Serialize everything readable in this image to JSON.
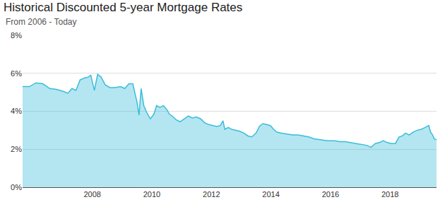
{
  "chart_data": {
    "type": "area",
    "title": "Historical Discounted 5-year Mortgage Rates",
    "subtitle": "From 2006 - Today",
    "color": "#3bbcd9",
    "grid": true,
    "x": [
      2005.66,
      2005.89,
      2006.11,
      2006.34,
      2006.57,
      2006.8,
      2007.02,
      2007.18,
      2007.32,
      2007.45,
      2007.59,
      2007.73,
      2007.86,
      2007.95,
      2008.07,
      2008.18,
      2008.3,
      2008.43,
      2008.59,
      2008.77,
      2008.95,
      2009.09,
      2009.23,
      2009.36,
      2009.5,
      2009.57,
      2009.64,
      2009.73,
      2009.84,
      2009.95,
      2010.07,
      2010.16,
      2010.27,
      2010.39,
      2010.5,
      2010.59,
      2010.68,
      2010.82,
      2010.95,
      2011.09,
      2011.23,
      2011.36,
      2011.5,
      2011.64,
      2011.77,
      2011.91,
      2012.05,
      2012.18,
      2012.3,
      2012.39,
      2012.45,
      2012.57,
      2012.68,
      2012.82,
      2012.95,
      2013.09,
      2013.23,
      2013.36,
      2013.5,
      2013.61,
      2013.73,
      2013.86,
      2013.98,
      2014.09,
      2014.2,
      2014.36,
      2014.55,
      2014.73,
      2014.91,
      2015.09,
      2015.27,
      2015.45,
      2015.68,
      2015.91,
      2016.14,
      2016.32,
      2016.5,
      2016.68,
      2016.86,
      2017.05,
      2017.23,
      2017.36,
      2017.5,
      2017.64,
      2017.77,
      2017.91,
      2018.05,
      2018.18,
      2018.3,
      2018.41,
      2018.52,
      2018.64,
      2018.77,
      2018.91,
      2019.05,
      2019.18,
      2019.3,
      2019.36,
      2019.43,
      2019.48,
      2019.56
    ],
    "values": [
      5.3,
      5.3,
      5.5,
      5.45,
      5.2,
      5.15,
      5.05,
      4.95,
      5.2,
      5.1,
      5.65,
      5.75,
      5.8,
      5.9,
      5.1,
      5.95,
      5.8,
      5.4,
      5.25,
      5.25,
      5.3,
      5.2,
      5.45,
      5.45,
      4.5,
      3.8,
      5.2,
      4.3,
      3.9,
      3.6,
      3.85,
      4.3,
      4.2,
      4.3,
      4.1,
      3.85,
      3.75,
      3.55,
      3.45,
      3.6,
      3.75,
      3.65,
      3.7,
      3.6,
      3.4,
      3.3,
      3.25,
      3.2,
      3.25,
      3.5,
      3.05,
      3.15,
      3.05,
      3.0,
      2.95,
      2.85,
      2.7,
      2.65,
      2.85,
      3.2,
      3.35,
      3.3,
      3.25,
      3.05,
      2.9,
      2.85,
      2.8,
      2.75,
      2.75,
      2.7,
      2.65,
      2.55,
      2.5,
      2.45,
      2.45,
      2.4,
      2.4,
      2.35,
      2.3,
      2.25,
      2.2,
      2.1,
      2.3,
      2.35,
      2.45,
      2.35,
      2.3,
      2.3,
      2.65,
      2.7,
      2.85,
      2.75,
      2.9,
      3.0,
      3.05,
      3.15,
      3.25,
      2.9,
      2.75,
      2.55,
      2.5
    ],
    "xlim": [
      2005.66,
      2019.56
    ],
    "xticks": [
      2008,
      2010,
      2012,
      2014,
      2016,
      2018
    ],
    "ylim": [
      0,
      8
    ],
    "yticks": [
      {
        "value": 0,
        "label": "0%"
      },
      {
        "value": 2,
        "label": "2%"
      },
      {
        "value": 4,
        "label": "4%"
      },
      {
        "value": 6,
        "label": "6%"
      },
      {
        "value": 8,
        "label": "8%"
      }
    ]
  }
}
